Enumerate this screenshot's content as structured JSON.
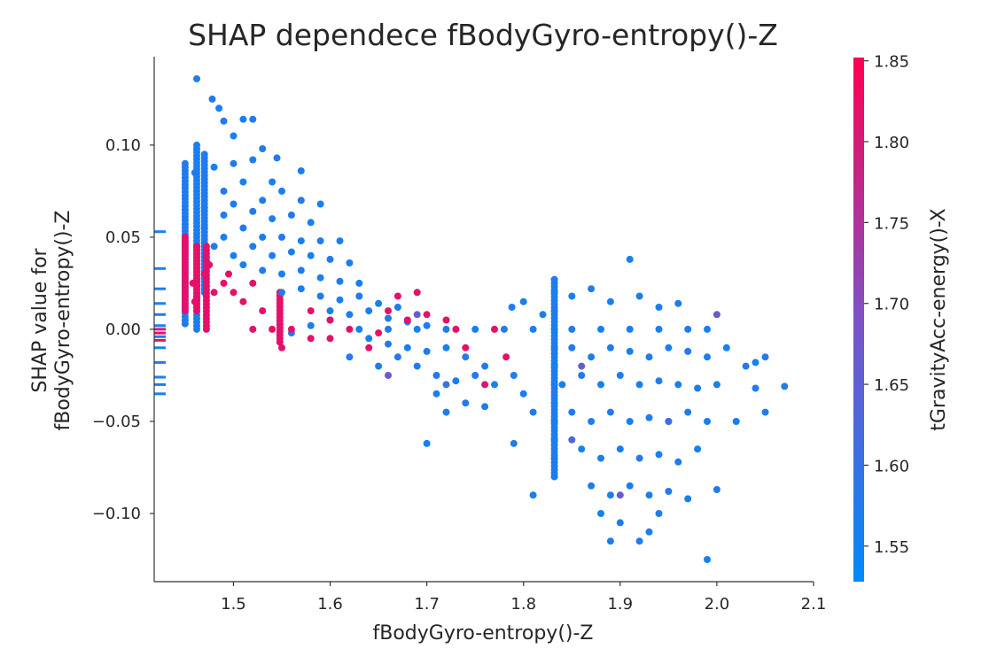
{
  "chart_data": {
    "type": "scatter",
    "title": "SHAP dependece fBodyGyro-entropy()-Z",
    "xlabel": "fBodyGyro-entropy()-Z",
    "ylabel_lines": [
      "SHAP value for",
      "fBodyGyro-entropy()-Z"
    ],
    "xlim": [
      1.418,
      2.1
    ],
    "ylim": [
      -0.137,
      0.148
    ],
    "xticks": [
      1.5,
      1.6,
      1.7,
      1.8,
      1.9,
      2.0,
      2.1
    ],
    "xtick_labels": [
      "1.5",
      "1.6",
      "1.7",
      "1.8",
      "1.9",
      "2.0",
      "2.1"
    ],
    "yticks": [
      -0.1,
      -0.05,
      0.0,
      0.05,
      0.1
    ],
    "ytick_labels": [
      "−0.10",
      "−0.05",
      "0.00",
      "0.05",
      "0.10"
    ],
    "grid": false,
    "colorbar": {
      "label": "tGravityAcc-energy()-X",
      "range": [
        1.528,
        1.852
      ],
      "ticks": [
        1.55,
        1.6,
        1.65,
        1.7,
        1.75,
        1.8,
        1.85
      ],
      "tick_labels": [
        "1.55",
        "1.60",
        "1.65",
        "1.70",
        "1.75",
        "1.80",
        "1.85"
      ],
      "color_low": "#008afb",
      "color_mid": "#7d52c6",
      "color_high": "#ff0052"
    },
    "points": [
      [
        1.462,
        0.136,
        1.56
      ],
      [
        1.478,
        0.125,
        1.57
      ],
      [
        1.485,
        0.12,
        1.56
      ],
      [
        1.49,
        0.113,
        1.57
      ],
      [
        1.51,
        0.114,
        1.56
      ],
      [
        1.52,
        0.114,
        1.57
      ],
      [
        1.57,
        0.086,
        1.56
      ],
      [
        1.545,
        0.093,
        1.57
      ],
      [
        1.5,
        0.105,
        1.56
      ],
      [
        1.53,
        0.098,
        1.57
      ],
      [
        1.52,
        0.092,
        1.56
      ],
      [
        1.46,
        0.085,
        1.57
      ],
      [
        1.48,
        0.088,
        1.56
      ],
      [
        1.5,
        0.09,
        1.57
      ],
      [
        1.54,
        0.08,
        1.56
      ],
      [
        1.49,
        0.075,
        1.57
      ],
      [
        1.51,
        0.08,
        1.56
      ],
      [
        1.53,
        0.07,
        1.57
      ],
      [
        1.55,
        0.075,
        1.56
      ],
      [
        1.57,
        0.07,
        1.57
      ],
      [
        1.59,
        0.068,
        1.56
      ],
      [
        1.47,
        0.066,
        1.56
      ],
      [
        1.49,
        0.062,
        1.57
      ],
      [
        1.5,
        0.068,
        1.56
      ],
      [
        1.52,
        0.064,
        1.57
      ],
      [
        1.54,
        0.06,
        1.56
      ],
      [
        1.56,
        0.062,
        1.57
      ],
      [
        1.58,
        0.058,
        1.56
      ],
      [
        1.47,
        0.055,
        1.57
      ],
      [
        1.49,
        0.05,
        1.56
      ],
      [
        1.51,
        0.055,
        1.57
      ],
      [
        1.53,
        0.05,
        1.56
      ],
      [
        1.55,
        0.05,
        1.57
      ],
      [
        1.57,
        0.048,
        1.56
      ],
      [
        1.59,
        0.048,
        1.57
      ],
      [
        1.61,
        0.048,
        1.56
      ],
      [
        1.48,
        0.045,
        1.57
      ],
      [
        1.5,
        0.04,
        1.56
      ],
      [
        1.52,
        0.045,
        1.57
      ],
      [
        1.54,
        0.04,
        1.56
      ],
      [
        1.56,
        0.042,
        1.57
      ],
      [
        1.58,
        0.04,
        1.56
      ],
      [
        1.6,
        0.038,
        1.57
      ],
      [
        1.62,
        0.036,
        1.56
      ],
      [
        1.51,
        0.035,
        1.56
      ],
      [
        1.53,
        0.032,
        1.57
      ],
      [
        1.55,
        0.03,
        1.56
      ],
      [
        1.57,
        0.032,
        1.57
      ],
      [
        1.59,
        0.028,
        1.56
      ],
      [
        1.61,
        0.026,
        1.57
      ],
      [
        1.63,
        0.025,
        1.56
      ],
      [
        1.55,
        0.02,
        1.57
      ],
      [
        1.57,
        0.022,
        1.56
      ],
      [
        1.59,
        0.018,
        1.57
      ],
      [
        1.61,
        0.016,
        1.56
      ],
      [
        1.63,
        0.018,
        1.57
      ],
      [
        1.65,
        0.014,
        1.56
      ],
      [
        1.67,
        0.012,
        1.57
      ],
      [
        1.6,
        0.01,
        1.56
      ],
      [
        1.62,
        0.008,
        1.57
      ],
      [
        1.64,
        0.01,
        1.56
      ],
      [
        1.66,
        0.006,
        1.57
      ],
      [
        1.68,
        0.004,
        1.56
      ],
      [
        1.7,
        0.002,
        1.57
      ],
      [
        1.64,
        -0.005,
        1.56
      ],
      [
        1.66,
        -0.008,
        1.57
      ],
      [
        1.68,
        -0.01,
        1.56
      ],
      [
        1.7,
        -0.012,
        1.57
      ],
      [
        1.72,
        -0.01,
        1.56
      ],
      [
        1.74,
        -0.015,
        1.57
      ],
      [
        1.76,
        -0.02,
        1.56
      ],
      [
        1.67,
        -0.015,
        1.57
      ],
      [
        1.69,
        -0.02,
        1.56
      ],
      [
        1.71,
        -0.025,
        1.57
      ],
      [
        1.73,
        -0.028,
        1.56
      ],
      [
        1.75,
        -0.025,
        1.57
      ],
      [
        1.77,
        -0.03,
        1.56
      ],
      [
        1.71,
        -0.035,
        1.56
      ],
      [
        1.74,
        -0.04,
        1.57
      ],
      [
        1.76,
        -0.042,
        1.56
      ],
      [
        1.72,
        -0.045,
        1.57
      ],
      [
        1.7,
        -0.062,
        1.56
      ],
      [
        1.79,
        -0.062,
        1.57
      ],
      [
        1.81,
        -0.09,
        1.56
      ],
      [
        1.788,
        0.012,
        1.56
      ],
      [
        1.8,
        0.015,
        1.57
      ],
      [
        1.82,
        0.008,
        1.56
      ],
      [
        1.79,
        -0.025,
        1.57
      ],
      [
        1.8,
        -0.035,
        1.56
      ],
      [
        1.81,
        -0.045,
        1.57
      ],
      [
        1.63,
        0.0,
        1.56
      ],
      [
        1.66,
        0.0,
        1.57
      ],
      [
        1.69,
        0.0,
        1.56
      ],
      [
        1.72,
        0.0,
        1.57
      ],
      [
        1.75,
        0.0,
        1.56
      ],
      [
        1.78,
        0.0,
        1.57
      ],
      [
        1.81,
        0.0,
        1.56
      ],
      [
        1.85,
        0.0,
        1.57
      ],
      [
        1.88,
        0.0,
        1.56
      ],
      [
        1.91,
        0.0,
        1.57
      ],
      [
        1.94,
        0.0,
        1.56
      ],
      [
        1.97,
        0.0,
        1.57
      ],
      [
        1.99,
        0.0,
        1.56
      ],
      [
        1.832,
        0.027,
        1.57
      ],
      [
        1.832,
        0.02,
        1.56
      ],
      [
        1.832,
        0.01,
        1.57
      ],
      [
        1.832,
        0.0,
        1.56
      ],
      [
        1.832,
        -0.01,
        1.57
      ],
      [
        1.832,
        -0.02,
        1.56
      ],
      [
        1.832,
        -0.03,
        1.57
      ],
      [
        1.832,
        -0.04,
        1.56
      ],
      [
        1.832,
        -0.05,
        1.57
      ],
      [
        1.832,
        -0.06,
        1.56
      ],
      [
        1.832,
        -0.07,
        1.57
      ],
      [
        1.832,
        -0.08,
        1.56
      ],
      [
        1.85,
        0.018,
        1.56
      ],
      [
        1.87,
        0.022,
        1.57
      ],
      [
        1.89,
        0.015,
        1.56
      ],
      [
        1.92,
        0.018,
        1.57
      ],
      [
        1.94,
        0.012,
        1.56
      ],
      [
        1.96,
        0.014,
        1.57
      ],
      [
        1.91,
        0.038,
        1.56
      ],
      [
        1.85,
        -0.01,
        1.57
      ],
      [
        1.87,
        -0.015,
        1.56
      ],
      [
        1.89,
        -0.01,
        1.57
      ],
      [
        1.91,
        -0.012,
        1.56
      ],
      [
        1.93,
        -0.015,
        1.57
      ],
      [
        1.95,
        -0.01,
        1.56
      ],
      [
        1.97,
        -0.012,
        1.57
      ],
      [
        1.99,
        -0.015,
        1.56
      ],
      [
        1.84,
        -0.03,
        1.56
      ],
      [
        1.86,
        -0.025,
        1.57
      ],
      [
        1.88,
        -0.03,
        1.56
      ],
      [
        1.9,
        -0.025,
        1.57
      ],
      [
        1.92,
        -0.03,
        1.56
      ],
      [
        1.94,
        -0.028,
        1.57
      ],
      [
        1.96,
        -0.03,
        1.56
      ],
      [
        1.98,
        -0.032,
        1.57
      ],
      [
        2.0,
        -0.03,
        1.56
      ],
      [
        1.85,
        -0.045,
        1.57
      ],
      [
        1.87,
        -0.05,
        1.56
      ],
      [
        1.89,
        -0.045,
        1.57
      ],
      [
        1.91,
        -0.05,
        1.56
      ],
      [
        1.93,
        -0.048,
        1.57
      ],
      [
        1.95,
        -0.05,
        1.56
      ],
      [
        1.97,
        -0.045,
        1.57
      ],
      [
        1.99,
        -0.05,
        1.56
      ],
      [
        1.86,
        -0.065,
        1.56
      ],
      [
        1.88,
        -0.07,
        1.57
      ],
      [
        1.9,
        -0.065,
        1.56
      ],
      [
        1.92,
        -0.07,
        1.57
      ],
      [
        1.94,
        -0.068,
        1.56
      ],
      [
        1.96,
        -0.072,
        1.57
      ],
      [
        1.98,
        -0.065,
        1.56
      ],
      [
        1.87,
        -0.085,
        1.57
      ],
      [
        1.89,
        -0.09,
        1.56
      ],
      [
        1.91,
        -0.085,
        1.57
      ],
      [
        1.93,
        -0.09,
        1.56
      ],
      [
        1.95,
        -0.088,
        1.57
      ],
      [
        1.97,
        -0.092,
        1.56
      ],
      [
        2.0,
        -0.087,
        1.57
      ],
      [
        1.88,
        -0.1,
        1.56
      ],
      [
        1.9,
        -0.105,
        1.57
      ],
      [
        1.92,
        -0.115,
        1.56
      ],
      [
        1.93,
        -0.11,
        1.57
      ],
      [
        1.94,
        -0.1,
        1.56
      ],
      [
        1.89,
        -0.115,
        1.57
      ],
      [
        1.99,
        -0.125,
        1.56
      ],
      [
        2.01,
        -0.01,
        1.56
      ],
      [
        2.03,
        -0.02,
        1.57
      ],
      [
        2.04,
        -0.032,
        1.56
      ],
      [
        2.05,
        -0.045,
        1.57
      ],
      [
        2.02,
        -0.05,
        1.56
      ],
      [
        2.07,
        -0.031,
        1.57
      ],
      [
        2.04,
        -0.018,
        1.56
      ],
      [
        2.05,
        -0.015,
        1.57
      ],
      [
        1.65,
        -0.02,
        1.56
      ],
      [
        1.62,
        -0.015,
        1.57
      ],
      [
        1.6,
        0.005,
        1.56
      ],
      [
        1.58,
        0.002,
        1.57
      ],
      [
        1.56,
        -0.002,
        1.56
      ],
      [
        1.76,
        -0.03,
        1.82
      ],
      [
        1.782,
        -0.015,
        1.82
      ],
      [
        1.77,
        0.0,
        1.82
      ],
      [
        1.74,
        -0.01,
        1.82
      ],
      [
        1.73,
        0.0,
        1.82
      ],
      [
        1.7,
        0.008,
        1.82
      ],
      [
        1.67,
        0.018,
        1.82
      ],
      [
        1.69,
        0.02,
        1.82
      ],
      [
        1.66,
        0.01,
        1.82
      ],
      [
        1.65,
        -0.002,
        1.82
      ],
      [
        1.62,
        0.0,
        1.82
      ],
      [
        1.6,
        0.005,
        1.82
      ],
      [
        1.58,
        0.01,
        1.82
      ],
      [
        1.56,
        0.0,
        1.82
      ],
      [
        1.55,
        -0.01,
        1.82
      ],
      [
        1.54,
        0.0,
        1.82
      ],
      [
        1.53,
        0.01,
        1.82
      ],
      [
        1.52,
        0.0,
        1.82
      ],
      [
        1.51,
        0.015,
        1.82
      ],
      [
        1.5,
        0.02,
        1.82
      ],
      [
        1.49,
        0.025,
        1.82
      ],
      [
        1.48,
        0.02,
        1.82
      ],
      [
        1.47,
        0.03,
        1.82
      ],
      [
        1.46,
        0.015,
        1.82
      ],
      [
        1.458,
        0.025,
        1.82
      ],
      [
        1.475,
        0.035,
        1.82
      ],
      [
        1.495,
        0.03,
        1.82
      ],
      [
        1.52,
        0.025,
        1.82
      ],
      [
        1.6,
        -0.005,
        1.82
      ],
      [
        1.64,
        -0.01,
        1.82
      ],
      [
        1.58,
        -0.005,
        1.82
      ],
      [
        1.68,
        0.005,
        1.82
      ],
      [
        1.72,
        0.005,
        1.82
      ],
      [
        1.66,
        -0.025,
        1.66
      ],
      [
        1.69,
        0.008,
        1.66
      ],
      [
        1.86,
        -0.02,
        1.66
      ],
      [
        2.0,
        0.008,
        1.66
      ],
      [
        1.72,
        -0.03,
        1.6
      ],
      [
        1.9,
        -0.09,
        1.66
      ],
      [
        1.95,
        -0.05,
        1.62
      ],
      [
        1.85,
        -0.06,
        1.62
      ]
    ],
    "vertical_columns": [
      {
        "x": 1.45,
        "y_range": [
          0.003,
          0.09
        ],
        "color_value": 1.57
      },
      {
        "x": 1.45,
        "y_range": [
          0.01,
          0.05
        ],
        "color_value": 1.82
      },
      {
        "x": 1.462,
        "y_range": [
          0.0,
          0.1
        ],
        "color_value": 1.56
      },
      {
        "x": 1.462,
        "y_range": [
          0.01,
          0.045
        ],
        "color_value": 1.82
      },
      {
        "x": 1.47,
        "y_range": [
          0.02,
          0.095
        ],
        "color_value": 1.57
      },
      {
        "x": 1.472,
        "y_range": [
          0.0,
          0.045
        ],
        "color_value": 1.82
      },
      {
        "x": 1.548,
        "y_range": [
          -0.007,
          0.02
        ],
        "color_value": 1.82
      },
      {
        "x": 1.832,
        "y_range": [
          -0.08,
          0.027
        ],
        "color_value": 1.57
      }
    ],
    "rug_marks": [
      {
        "y": 0.053,
        "color_value": 1.56
      },
      {
        "y": 0.033,
        "color_value": 1.56
      },
      {
        "y": 0.022,
        "color_value": 1.57
      },
      {
        "y": 0.014,
        "color_value": 1.56
      },
      {
        "y": 0.008,
        "color_value": 1.57
      },
      {
        "y": 0.002,
        "color_value": 1.56
      },
      {
        "y": -0.004,
        "color_value": 1.57
      },
      {
        "y": -0.01,
        "color_value": 1.56
      },
      {
        "y": -0.018,
        "color_value": 1.57
      },
      {
        "y": -0.026,
        "color_value": 1.56
      },
      {
        "y": -0.03,
        "color_value": 1.57
      },
      {
        "y": -0.035,
        "color_value": 1.56
      },
      {
        "y": 0.0,
        "color_value": 1.82
      },
      {
        "y": -0.002,
        "color_value": 1.82
      },
      {
        "y": -0.006,
        "color_value": 1.82
      }
    ]
  }
}
